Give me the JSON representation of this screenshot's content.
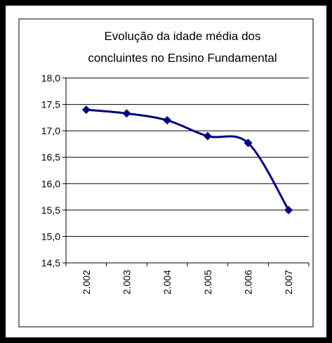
{
  "chart_data": {
    "type": "line",
    "title": [
      "Evolução da idade média dos",
      "concluintes no Ensino Fundamental"
    ],
    "categories": [
      "2.002",
      "2.003",
      "2.004",
      "2.005",
      "2.006",
      "2.007"
    ],
    "values": [
      17.4,
      17.33,
      17.2,
      16.9,
      16.77,
      15.5
    ],
    "color": "#000080",
    "ylim": [
      14.5,
      18.0
    ],
    "yticks": [
      {
        "value": 14.5,
        "label": "14,5"
      },
      {
        "value": 15.0,
        "label": "15,0"
      },
      {
        "value": 15.5,
        "label": "15,5"
      },
      {
        "value": 16.0,
        "label": "16,0"
      },
      {
        "value": 16.5,
        "label": "16,5"
      },
      {
        "value": 17.0,
        "label": "17,0"
      },
      {
        "value": 17.5,
        "label": "17,5"
      },
      {
        "value": 18.0,
        "label": "18,0"
      }
    ],
    "grid": true
  }
}
